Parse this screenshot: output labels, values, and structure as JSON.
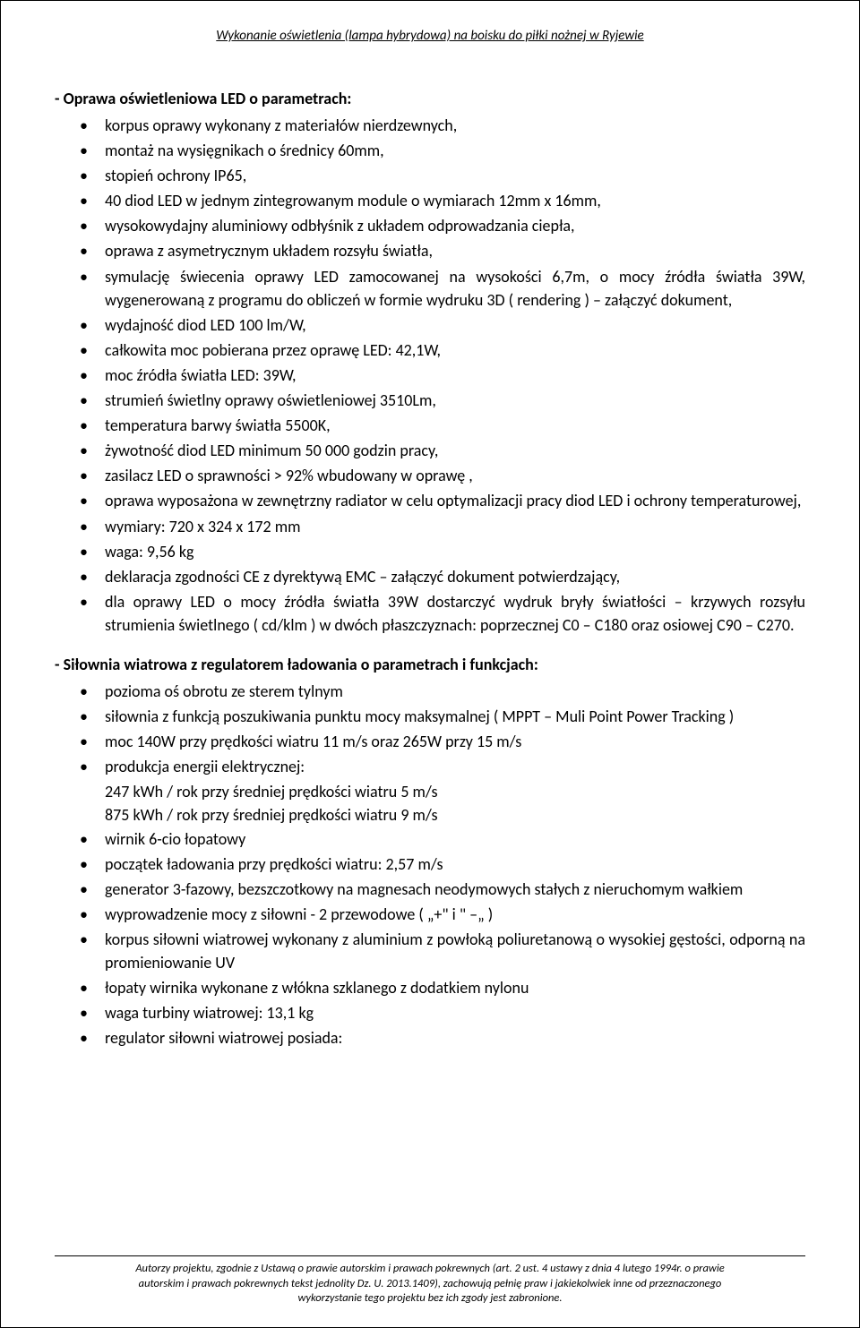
{
  "header": {
    "title": "Wykonanie oświetlenia (lampa hybrydowa)  na boisku do piłki nożnej w Ryjewie"
  },
  "section1": {
    "title": "- Oprawa oświetleniowa LED o parametrach:",
    "items": [
      "korpus oprawy wykonany z materiałów nierdzewnych,",
      "montaż na wysięgnikach o średnicy 60mm,",
      "stopień ochrony IP65,",
      "40 diod LED w jednym zintegrowanym module o wymiarach 12mm x 16mm,",
      "wysokowydajny aluminiowy odbłyśnik z układem odprowadzania ciepła,",
      "oprawa z asymetrycznym układem rozsyłu światła,",
      "symulację świecenia oprawy LED zamocowanej na wysokości 6,7m, o mocy źródła światła 39W, wygenerowaną z programu do obliczeń w formie wydruku 3D  ( rendering ) – załączyć dokument,",
      "wydajność diod LED 100 lm/W,",
      "całkowita moc pobierana przez oprawę LED: 42,1W,",
      "moc źródła światła LED: 39W,",
      "strumień świetlny oprawy oświetleniowej 3510Lm,",
      "temperatura barwy światła 5500K,",
      "żywotność diod LED minimum 50 000 godzin pracy,",
      "zasilacz LED o sprawności > 92% wbudowany w oprawę ,",
      "oprawa wyposażona w zewnętrzny radiator w celu optymalizacji pracy diod LED i ochrony temperaturowej,",
      "wymiary: 720 x 324 x 172 mm",
      "waga: 9,56 kg",
      "deklaracja zgodności CE z dyrektywą EMC – załączyć dokument potwierdzający,",
      "dla oprawy LED o mocy źródła światła 39W dostarczyć wydruk bryły światłości – krzywych rozsyłu strumienia świetlnego ( cd/klm ) w dwóch płaszczyznach: poprzecznej C0 – C180 oraz osiowej C90 – C270."
    ]
  },
  "section2": {
    "title": "- Siłownia wiatrowa z regulatorem ładowania o parametrach i funkcjach:",
    "items1": [
      "pozioma oś obrotu ze sterem tylnym",
      "siłownia z funkcją poszukiwania punktu mocy maksymalnej ( MPPT – Muli Point Power Tracking )",
      "moc 140W przy prędkości wiatru 11 m/s oraz 265W przy 15 m/s",
      "produkcja energii elektrycznej:"
    ],
    "plain1": "247 kWh / rok przy średniej prędkości wiatru 5 m/s",
    "plain2": "875 kWh / rok przy średniej prędkości wiatru 9 m/s",
    "items2": [
      "wirnik 6-cio łopatowy",
      "początek ładowania przy prędkości wiatru: 2,57 m/s",
      "generator 3-fazowy, bezszczotkowy na magnesach neodymowych stałych z nieruchomym wałkiem",
      "wyprowadzenie mocy z siłowni - 2 przewodowe ( „+\" i \" –„ )",
      "korpus siłowni wiatrowej wykonany z aluminium z powłoką poliuretanową o wysokiej gęstości, odporną na promieniowanie UV",
      "łopaty wirnika wykonane z włókna szklanego z dodatkiem nylonu",
      "waga turbiny wiatrowej: 13,1 kg",
      "regulator siłowni wiatrowej posiada:"
    ]
  },
  "footer": {
    "line1": "Autorzy projektu, zgodnie z Ustawą o prawie autorskim i prawach pokrewnych (art. 2 ust. 4 ustawy z dnia 4 lutego 1994r. o prawie",
    "line2": "autorskim i prawach pokrewnych tekst jednolity Dz. U. 2013.1409), zachowują pełnię praw i jakiekolwiek inne od przeznaczonego",
    "line3": "wykorzystanie tego projektu bez ich zgody jest zabronione."
  }
}
